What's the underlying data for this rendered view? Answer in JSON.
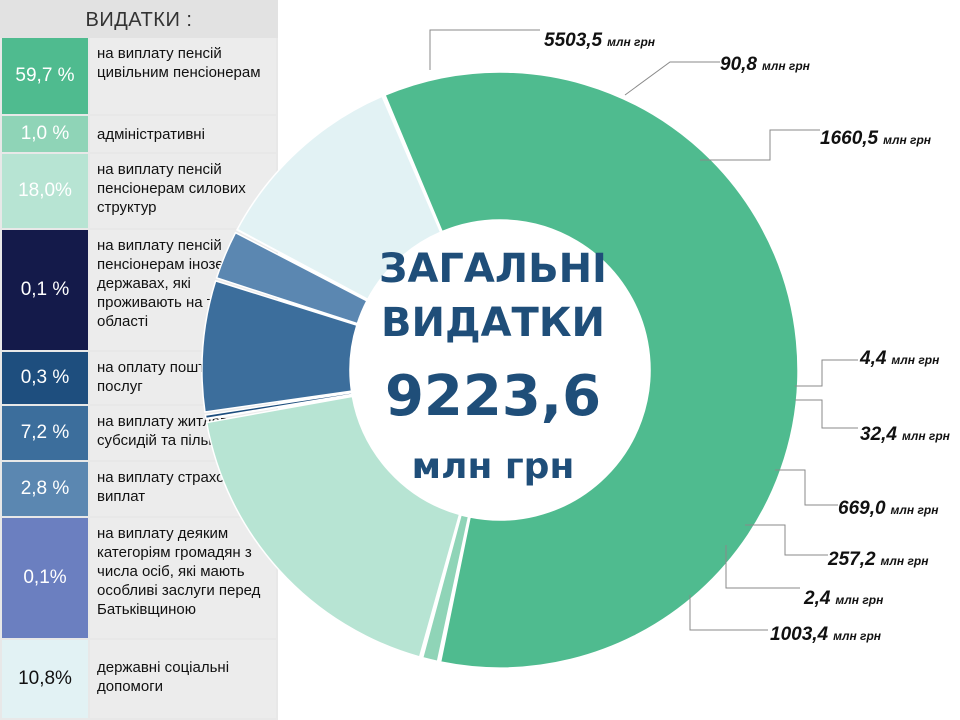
{
  "legend": {
    "title": "ВИДАТКИ :",
    "rows": [
      {
        "pct": "59,7 %",
        "text": "на виплату пенсій цивільним пенсіонерам",
        "color": "#4fbb8f"
      },
      {
        "pct": "1,0 %",
        "text": "адміністративні",
        "color": "#8fd4b7"
      },
      {
        "pct": "18,0%",
        "text": "на виплату пенсій пенсіонерам силових структур",
        "color": "#b7e4d3"
      },
      {
        "pct": "0,1 %",
        "text": "на виплату пенсій пенсіонерам іноземних державах, які проживають на території області",
        "color": "#141a4a"
      },
      {
        "pct": "0,3 %",
        "text": "на оплату поштових послуг",
        "color": "#1e4e7e"
      },
      {
        "pct": "7,2 %",
        "text": "на виплату житлових субсидій та пільг",
        "color": "#3c6e9c"
      },
      {
        "pct": "2,8 %",
        "text": "на виплату страхових виплат",
        "color": "#5b87b1"
      },
      {
        "pct": "0,1%",
        "text": "на виплату деяким категоріям громадян з числа осіб, які мають особливі заслуги перед Батьківщиною",
        "color": "#6b7fc0"
      },
      {
        "pct": "10,8%",
        "text": "державні соціальні допомоги",
        "color": "#e2f2f4"
      }
    ]
  },
  "center": {
    "line1": "ЗАГАЛЬНІ",
    "line2": "ВИДАТКИ",
    "total": "9223,6",
    "unit": "млн грн"
  },
  "chart_data": {
    "type": "pie",
    "title": "ЗАГАЛЬНІ ВИДАТКИ 9223,6 млн грн",
    "unit": "млн грн",
    "slices": [
      {
        "value": 5503.5,
        "label": "5503,5",
        "color": "#4fbb8f"
      },
      {
        "value": 90.8,
        "label": "90,8",
        "color": "#8fd4b7"
      },
      {
        "value": 1660.5,
        "label": "1660,5",
        "color": "#b7e4d3"
      },
      {
        "value": 4.4,
        "label": "4,4",
        "color": "#141a4a"
      },
      {
        "value": 32.4,
        "label": "32,4",
        "color": "#1e4e7e"
      },
      {
        "value": 669.0,
        "label": "669,0",
        "color": "#3c6e9c"
      },
      {
        "value": 257.2,
        "label": "257,2",
        "color": "#5b87b1"
      },
      {
        "value": 2.4,
        "label": "2,4",
        "color": "#6b7fc0"
      },
      {
        "value": 1003.4,
        "label": "1003,4",
        "color": "#e2f2f4"
      }
    ]
  }
}
